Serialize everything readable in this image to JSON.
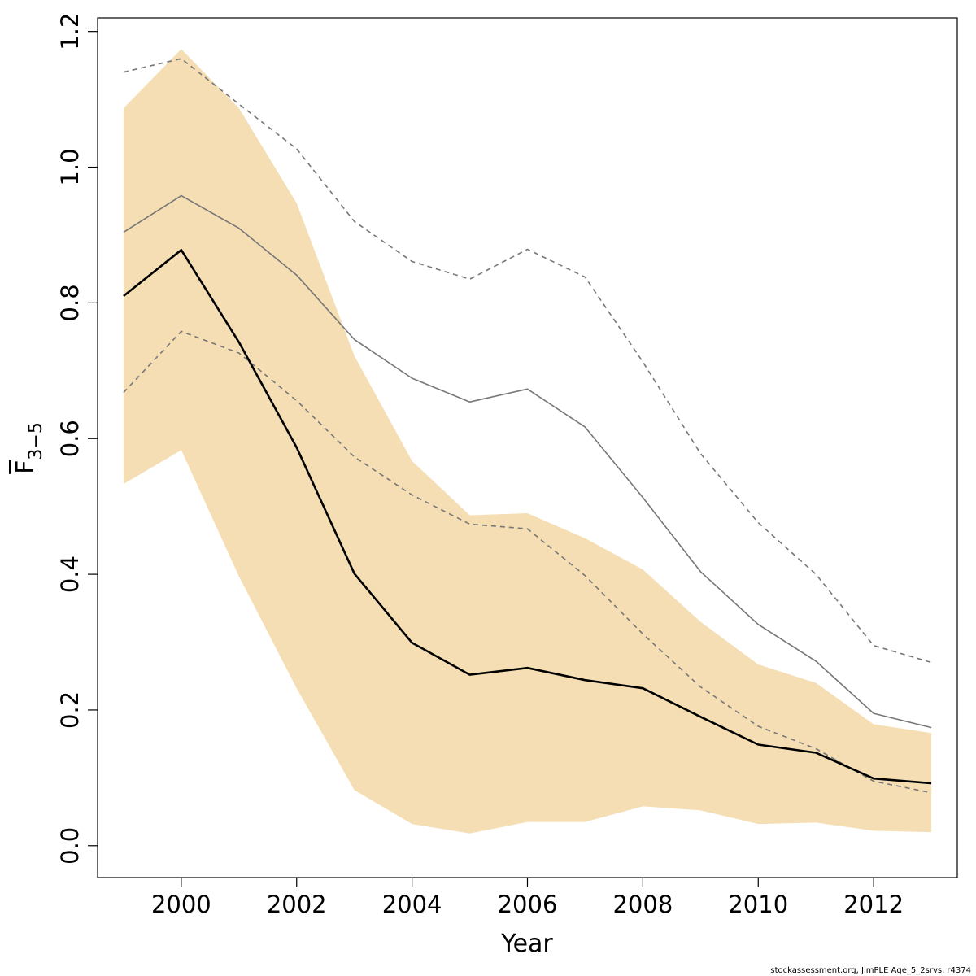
{
  "chart_data": {
    "type": "line",
    "xlabel": "Year",
    "ylabel": {
      "main": "F",
      "subscript": "3−5"
    },
    "xlim": [
      1998.55,
      2013.45
    ],
    "ylim": [
      -0.047,
      1.22
    ],
    "x_ticks": [
      2000,
      2002,
      2004,
      2006,
      2008,
      2010,
      2012
    ],
    "y_ticks": [
      0.0,
      0.2,
      0.4,
      0.6,
      0.8,
      1.0,
      1.2
    ],
    "y_tick_labels": [
      "0.0",
      "0.2",
      "0.4",
      "0.6",
      "0.8",
      "1.0",
      "1.2"
    ],
    "grid": false,
    "x": [
      1999,
      2000,
      2001,
      2002,
      2003,
      2004,
      2005,
      2006,
      2007,
      2008,
      2009,
      2010,
      2011,
      2012,
      2013
    ],
    "band": {
      "color": "#f5deb3",
      "lower": [
        0.533,
        0.583,
        0.397,
        0.232,
        0.082,
        0.032,
        0.018,
        0.035,
        0.035,
        0.058,
        0.052,
        0.032,
        0.034,
        0.022,
        0.02
      ],
      "upper": [
        1.087,
        1.174,
        1.087,
        0.947,
        0.722,
        0.567,
        0.487,
        0.49,
        0.453,
        0.407,
        0.33,
        0.267,
        0.24,
        0.179,
        0.166
      ]
    },
    "series": [
      {
        "style": "solid-thick",
        "color": "#000000",
        "values": [
          0.81,
          0.878,
          0.742,
          0.587,
          0.401,
          0.299,
          0.252,
          0.262,
          0.244,
          0.232,
          0.19,
          0.149,
          0.137,
          0.099,
          0.092
        ]
      },
      {
        "style": "solid-thin",
        "color": "#777777",
        "values": [
          0.904,
          0.958,
          0.91,
          0.841,
          0.746,
          0.689,
          0.654,
          0.673,
          0.617,
          0.513,
          0.404,
          0.326,
          0.272,
          0.195,
          0.174
        ]
      },
      {
        "style": "dashed-upper",
        "color": "#777777",
        "values": [
          1.14,
          1.16,
          1.093,
          1.027,
          0.92,
          0.861,
          0.835,
          0.879,
          0.838,
          0.713,
          0.578,
          0.476,
          0.4,
          0.295,
          0.27
        ]
      },
      {
        "style": "dashed-lower",
        "color": "#777777",
        "values": [
          0.668,
          0.758,
          0.726,
          0.656,
          0.573,
          0.517,
          0.474,
          0.467,
          0.398,
          0.312,
          0.234,
          0.176,
          0.143,
          0.095,
          0.078
        ]
      }
    ]
  },
  "footnote": "stockassessment.org, JimPLE Age_5_2srvs, r4374"
}
